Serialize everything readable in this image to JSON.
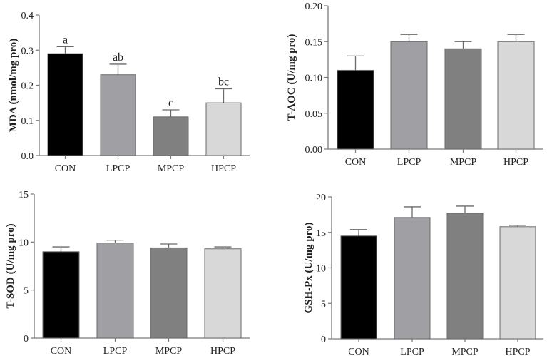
{
  "chart_data": [
    {
      "type": "bar",
      "title": "",
      "xlabel": "",
      "ylabel": "MDA (nmol/mg pro)",
      "ylim": [
        0,
        0.4
      ],
      "yticks": [
        "0.0",
        "0.1",
        "0.2",
        "0.3",
        "0.4"
      ],
      "categories": [
        "CON",
        "LPCP",
        "MPCP",
        "HPCP"
      ],
      "values": [
        0.29,
        0.23,
        0.11,
        0.15
      ],
      "errors": [
        0.02,
        0.03,
        0.02,
        0.04
      ],
      "annotations": [
        "a",
        "ab",
        "c",
        "bc"
      ],
      "colors": [
        "#000000",
        "#a0a0a4",
        "#808080",
        "#d8d8d8"
      ]
    },
    {
      "type": "bar",
      "title": "",
      "xlabel": "",
      "ylabel": "T-AOC (U/mg pro)",
      "ylim": [
        0,
        0.2
      ],
      "yticks": [
        "0.00",
        "0.05",
        "0.10",
        "0.15",
        "0.20"
      ],
      "categories": [
        "CON",
        "LPCP",
        "MPCP",
        "HPCP"
      ],
      "values": [
        0.11,
        0.15,
        0.14,
        0.15
      ],
      "errors": [
        0.02,
        0.01,
        0.01,
        0.01
      ],
      "annotations": [],
      "colors": [
        "#000000",
        "#a0a0a4",
        "#808080",
        "#d8d8d8"
      ]
    },
    {
      "type": "bar",
      "title": "",
      "xlabel": "",
      "ylabel": "T-SOD (U/mg pro)",
      "ylim": [
        0,
        15
      ],
      "yticks": [
        "0",
        "5",
        "10",
        "15"
      ],
      "categories": [
        "CON",
        "LPCP",
        "MPCP",
        "HPCP"
      ],
      "values": [
        9.0,
        9.9,
        9.4,
        9.3
      ],
      "errors": [
        0.5,
        0.3,
        0.4,
        0.2
      ],
      "annotations": [],
      "colors": [
        "#000000",
        "#a0a0a4",
        "#808080",
        "#d8d8d8"
      ]
    },
    {
      "type": "bar",
      "title": "",
      "xlabel": "",
      "ylabel": "GSH-Px (U/mg pro)",
      "ylim": [
        0,
        20
      ],
      "yticks": [
        "0",
        "5",
        "10",
        "15",
        "20"
      ],
      "categories": [
        "CON",
        "LPCP",
        "MPCP",
        "HPCP"
      ],
      "values": [
        14.5,
        17.1,
        17.7,
        15.8
      ],
      "errors": [
        0.9,
        1.5,
        1.0,
        0.2
      ],
      "annotations": [],
      "colors": [
        "#000000",
        "#a0a0a4",
        "#808080",
        "#d8d8d8"
      ]
    }
  ]
}
